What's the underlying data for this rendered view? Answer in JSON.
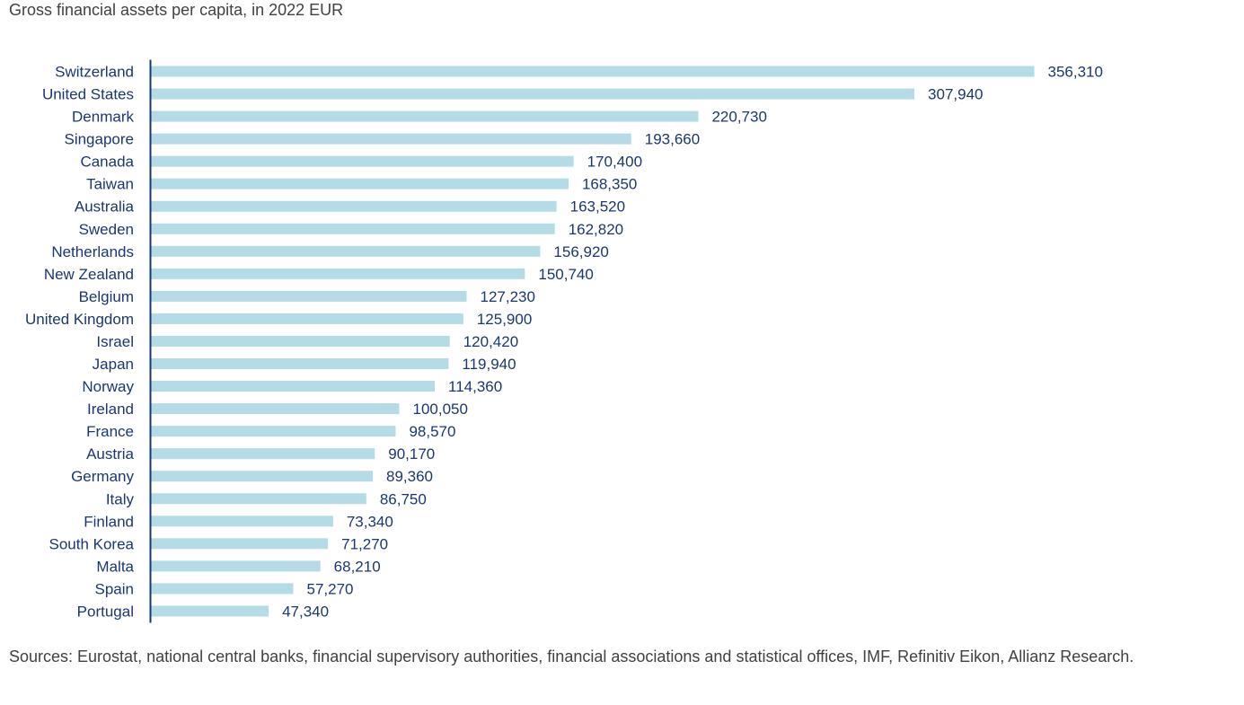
{
  "chart_title": "Gross financial assets per capita, in 2022 EUR",
  "sources": "Sources: Eurostat, national central banks, financial supervisory authorities, financial associations and statistical offices, IMF, Refinitiv Eikon, Allianz Research.",
  "colors": {
    "bar": "#b4dbe6",
    "axis": "#193773",
    "label": "#193773",
    "text": "#414141"
  },
  "chart_data": {
    "type": "bar",
    "orientation": "horizontal",
    "title": "Gross financial assets per capita, in 2022 EUR",
    "categories": [
      "Switzerland",
      "United States",
      "Denmark",
      "Singapore",
      "Canada",
      "Taiwan",
      "Australia",
      "Sweden",
      "Netherlands",
      "New Zealand",
      "Belgium",
      "United Kingdom",
      "Israel",
      "Japan",
      "Norway",
      "Ireland",
      "France",
      "Austria",
      "Germany",
      "Italy",
      "Finland",
      "South Korea",
      "Malta",
      "Spain",
      "Portugal"
    ],
    "values": [
      356310,
      307940,
      220730,
      193660,
      170400,
      168350,
      163520,
      162820,
      156920,
      150740,
      127230,
      125900,
      120420,
      119940,
      114360,
      100050,
      98570,
      90170,
      89360,
      86750,
      73340,
      71270,
      68210,
      57270,
      47340
    ],
    "value_labels": [
      "356,310",
      "307,940",
      "220,730",
      "193,660",
      "170,400",
      "168,350",
      "163,520",
      "162,820",
      "156,920",
      "150,740",
      "127,230",
      "125,900",
      "120,420",
      "119,940",
      "114,360",
      "100,050",
      "98,570",
      "90,170",
      "89,360",
      "86,750",
      "73,340",
      "71,270",
      "68,210",
      "57,270",
      "47,340"
    ],
    "xlim": [
      0,
      356310
    ],
    "grid": false,
    "legend": "none"
  }
}
